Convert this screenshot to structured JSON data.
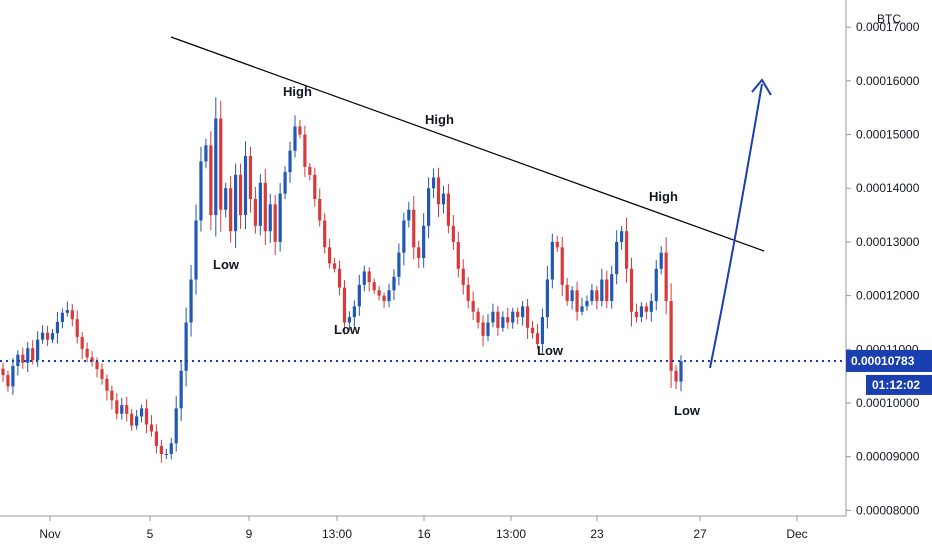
{
  "chart_data": {
    "type": "candlestick",
    "currency": "BTC",
    "y_ticks": [
      "0.00008000",
      "0.00009000",
      "0.00010000",
      "0.00011000",
      "0.00012000",
      "0.00013000",
      "0.00014000",
      "0.00015000",
      "0.00016000",
      "0.00017000"
    ],
    "x_ticks": [
      "Nov",
      "5",
      "9",
      "13:00",
      "16",
      "13:00",
      "23",
      "27",
      "Dec"
    ],
    "current_price": 0.00010783,
    "current_price_label": "0.00010783",
    "countdown_label": "01:12:02",
    "ylim": [
      7.97e-05,
      0.0001745
    ],
    "colors": {
      "up": "#2157b5",
      "down": "#d63a3a",
      "price_line": "#1a3fb0",
      "trendline": "#000000",
      "arrow": "#1a3fb0"
    },
    "closes": [
      0.0001052,
      0.0001031,
      0.0001069,
      0.000109,
      0.0001075,
      0.0001102,
      0.000108,
      0.0001118,
      0.0001131,
      0.0001118,
      0.000113,
      0.0001151,
      0.0001168,
      0.0001173,
      0.0001156,
      0.0001123,
      0.0001101,
      0.0001085,
      0.0001077,
      0.0001063,
      0.0001045,
      0.0001023,
      0.0001005,
      9.8e-05,
      9.96e-05,
      9.8e-05,
      9.58e-05,
      9.75e-05,
      9.9e-05,
      9.6e-05,
      9.47e-05,
      9.2e-05,
      9.05e-05,
      9.05e-05,
      9.25e-05,
      9.9e-05,
      0.000106,
      0.000115,
      0.000123,
      0.000134,
      0.000145,
      0.000148,
      0.000135,
      0.000153,
      0.000136,
      0.00014,
      0.000132,
      0.0001425,
      0.000135,
      0.000146,
      0.000138,
      0.000133,
      0.000141,
      0.000132,
      0.000137,
      0.00013,
      0.000139,
      0.000143,
      0.000147,
      0.0001515,
      0.00015,
      0.000144,
      0.0001425,
      0.000138,
      0.000134,
      0.000129,
      0.000126,
      0.000125,
      0.0001215,
      0.000115,
      0.000116,
      0.000118,
      0.000122,
      0.0001245,
      0.0001225,
      0.000121,
      0.00012,
      0.000119,
      0.000121,
      0.0001235,
      0.000128,
      0.000134,
      0.000136,
      0.000129,
      0.000127,
      0.000133,
      0.00014,
      0.000142,
      0.000137,
      0.000139,
      0.000133,
      0.00013,
      0.000125,
      0.000122,
      0.000119,
      0.000117,
      0.000115,
      0.0001125,
      0.000115,
      0.000117,
      0.000114,
      0.000116,
      0.000115,
      0.000117,
      0.000116,
      0.000118,
      0.000114,
      0.000113,
      0.000111,
      0.000116,
      0.000123,
      0.00013,
      0.000129,
      0.000122,
      0.000119,
      0.000121,
      0.000117,
      0.000118,
      0.000119,
      0.000121,
      0.000119,
      0.000123,
      0.000119,
      0.000124,
      0.00013,
      0.000132,
      0.000125,
      0.000117,
      0.000116,
      0.000118,
      0.000117,
      0.000119,
      0.000125,
      0.000128,
      0.000119,
      0.000106,
      0.000104,
      0.0001078
    ]
  },
  "annotations": {
    "high_1": "High",
    "high_2": "High",
    "high_3": "High",
    "low_1": "Low",
    "low_2": "Low",
    "low_3": "Low",
    "low_4": "Low"
  }
}
